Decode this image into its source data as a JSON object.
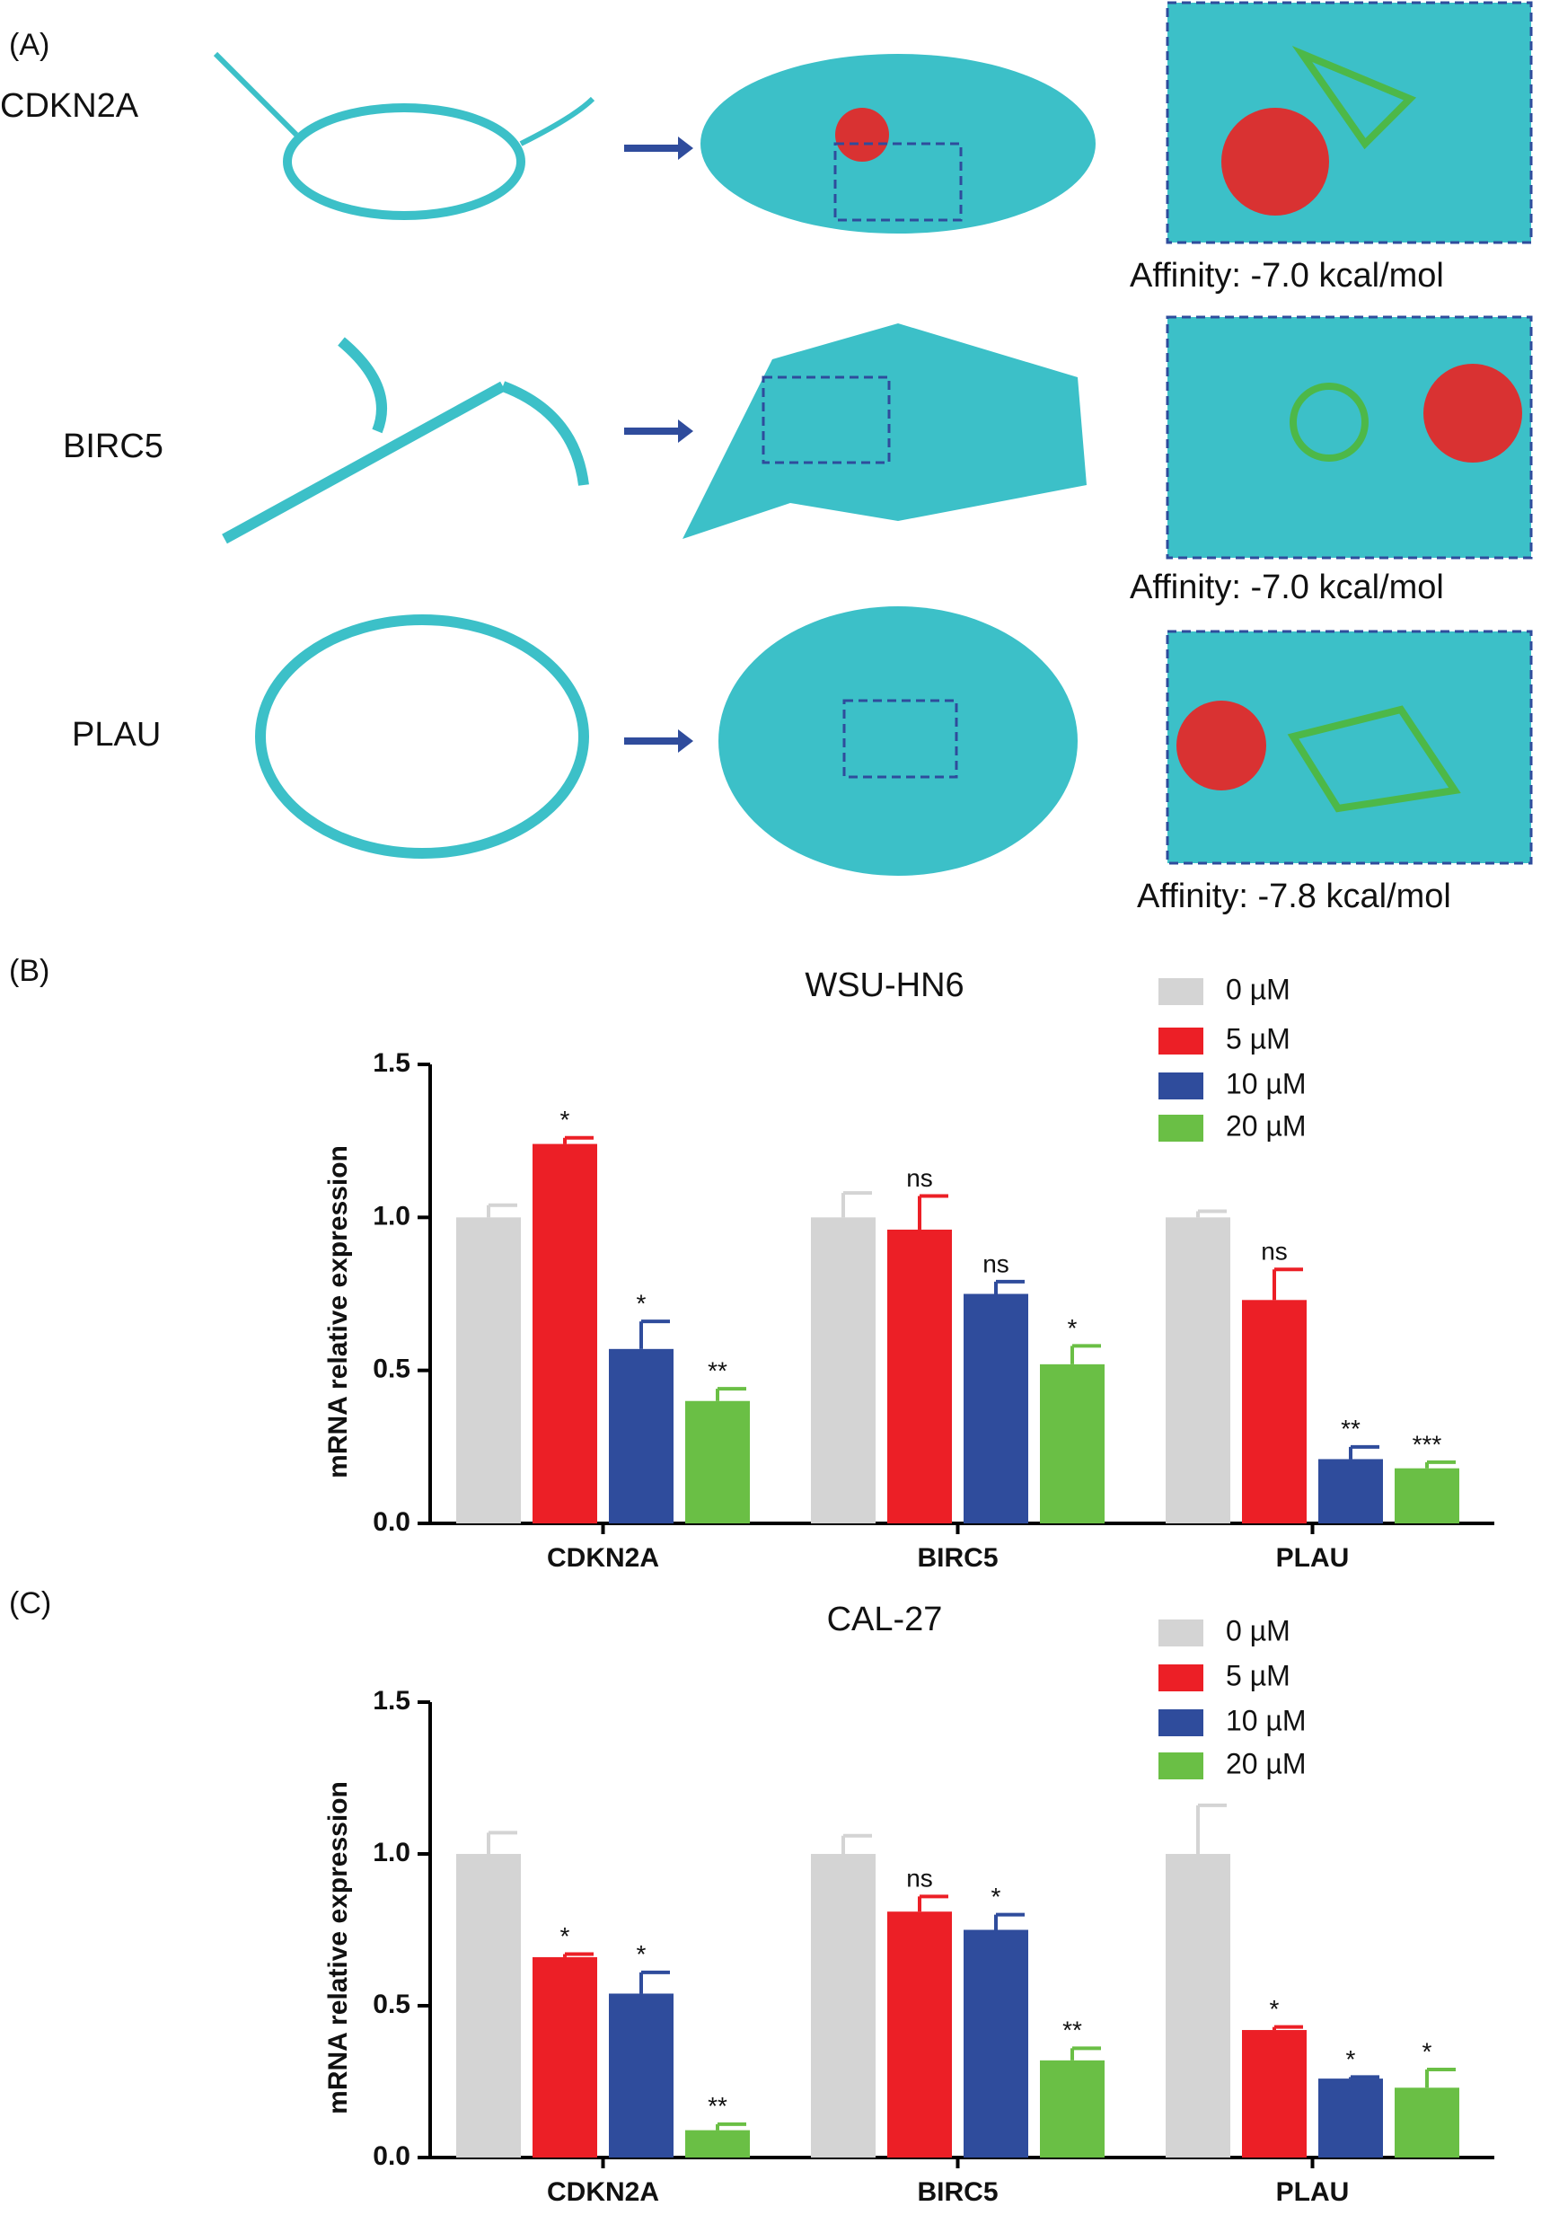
{
  "docking": {
    "label": "(A)",
    "rows": [
      {
        "protein": "CDKN2A",
        "affinity": "Affinity:  -7.0 kcal/mol"
      },
      {
        "protein": "BIRC5",
        "affinity": "Affinity:  -7.0 kcal/mol"
      },
      {
        "protein": "PLAU",
        "affinity": "Affinity:  -7.8 kcal/mol"
      }
    ]
  },
  "chart_data": [
    {
      "type": "bar",
      "panel_label": "(B)",
      "title": "WSU-HN6",
      "y_label": "mRNA relative expression",
      "categories": [
        "CDKN2A",
        "BIRC5",
        "PLAU"
      ],
      "ylim": [
        0,
        1.5
      ],
      "yticks": [
        {
          "value": 0,
          "label": "0.0"
        },
        0.5,
        {
          "value": 1,
          "label": "1.0"
        },
        1.5
      ],
      "series": [
        {
          "name": "0 µM",
          "color": "#d4d4d4",
          "values": [
            1.0,
            1.0,
            1.0
          ],
          "errors": [
            0.04,
            0.08,
            0.02
          ],
          "annotations": [
            null,
            null,
            null
          ]
        },
        {
          "name": "5 µM",
          "color": "#ec1f26",
          "values": [
            1.24,
            0.96,
            0.73
          ],
          "errors": [
            0.02,
            0.11,
            0.1
          ],
          "annotations": [
            "*",
            "ns",
            "ns"
          ]
        },
        {
          "name": "10 µM",
          "color": "#2f4c9c",
          "values": [
            0.57,
            0.75,
            0.21
          ],
          "errors": [
            0.09,
            0.04,
            0.04
          ],
          "annotations": [
            "*",
            "ns",
            "**"
          ]
        },
        {
          "name": "20 µM",
          "color": "#6abf45",
          "values": [
            0.4,
            0.52,
            0.18
          ],
          "errors": [
            0.04,
            0.06,
            0.02
          ],
          "annotations": [
            "**",
            "*",
            "***"
          ]
        }
      ]
    },
    {
      "type": "bar",
      "panel_label": "(C)",
      "title": "CAL-27",
      "y_label": "mRNA relative expression",
      "categories": [
        "CDKN2A",
        "BIRC5",
        "PLAU"
      ],
      "ylim": [
        0,
        1.5
      ],
      "yticks": [
        {
          "value": 0,
          "label": "0.0"
        },
        0.5,
        {
          "value": 1,
          "label": "1.0"
        },
        1.5
      ],
      "series": [
        {
          "name": "0 µM",
          "color": "#d4d4d4",
          "values": [
            1.0,
            1.0,
            1.0
          ],
          "errors": [
            0.07,
            0.06,
            0.16
          ],
          "annotations": [
            null,
            null,
            null
          ]
        },
        {
          "name": "5 µM",
          "color": "#ec1f26",
          "values": [
            0.66,
            0.81,
            0.42
          ],
          "errors": [
            0.01,
            0.05,
            0.01
          ],
          "annotations": [
            "*",
            "ns",
            "*"
          ]
        },
        {
          "name": "10 µM",
          "color": "#2f4c9c",
          "values": [
            0.54,
            0.75,
            0.26
          ],
          "errors": [
            0.07,
            0.05,
            0.005
          ],
          "annotations": [
            "*",
            "*",
            "*"
          ]
        },
        {
          "name": "20 µM",
          "color": "#6abf45",
          "values": [
            0.09,
            0.32,
            0.23
          ],
          "errors": [
            0.02,
            0.04,
            0.06
          ],
          "annotations": [
            "**",
            "**",
            "*"
          ]
        }
      ]
    }
  ]
}
